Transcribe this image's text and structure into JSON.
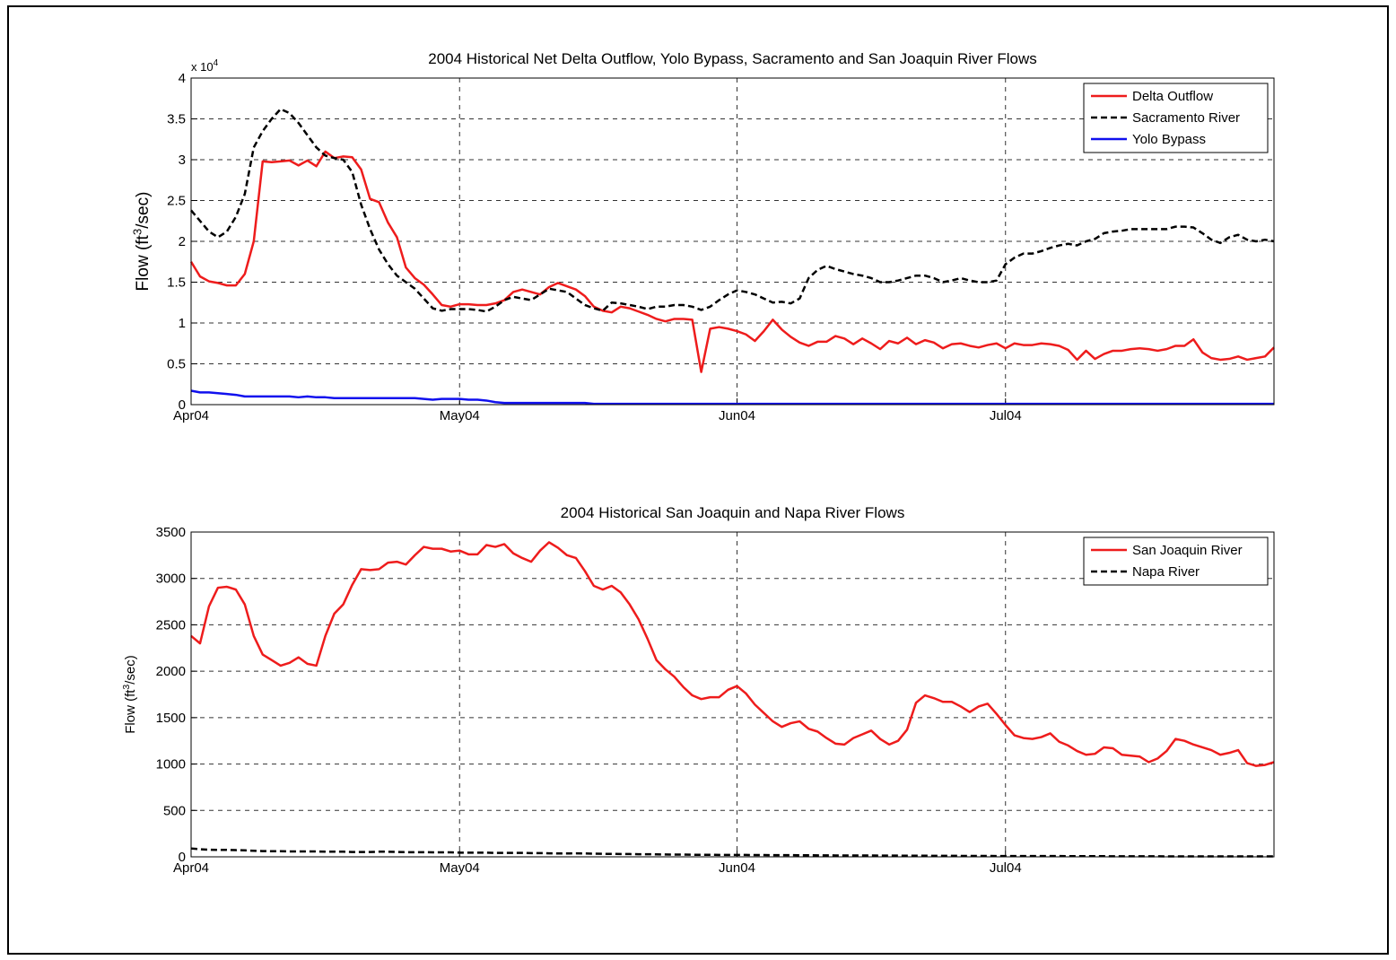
{
  "chart_data": [
    {
      "type": "line",
      "title": "2004 Historical Net Delta Outflow, Yolo Bypass, Sacramento and San Joaquin River Flows",
      "ylabel": {
        "text": "Flow (ft",
        "superscript": "3",
        "suffix": "/sec)"
      },
      "y_multiplier": {
        "base": "x 10",
        "exponent": "4"
      },
      "x": [
        0,
        1,
        2,
        3,
        4,
        5,
        6,
        7,
        8,
        9,
        10,
        11,
        12,
        13,
        14,
        15,
        16,
        17,
        18,
        19,
        20,
        21,
        22,
        23,
        24,
        25,
        26,
        27,
        28,
        29,
        30,
        31,
        32,
        33,
        34,
        35,
        36,
        37,
        38,
        39,
        40,
        41,
        42,
        43,
        44,
        45,
        46,
        47,
        48,
        49,
        50,
        51,
        52,
        53,
        54,
        55,
        56,
        57,
        58,
        59,
        60,
        61,
        62,
        63,
        64,
        65,
        66,
        67,
        68,
        69,
        70,
        71,
        72,
        73,
        74,
        75,
        76,
        77,
        78,
        79,
        80,
        81,
        82,
        83,
        84,
        85,
        86,
        87,
        88,
        89,
        90,
        91,
        92,
        93,
        94,
        95,
        96,
        97,
        98,
        99,
        100,
        101,
        102,
        103,
        104,
        105,
        106,
        107,
        108,
        109,
        110,
        111,
        112,
        113,
        114,
        115,
        116,
        117,
        118,
        119,
        120,
        121
      ],
      "xlim": [
        0,
        121
      ],
      "xticks": [
        {
          "value": 0,
          "label": "Apr04"
        },
        {
          "value": 30,
          "label": "May04"
        },
        {
          "value": 61,
          "label": "Jun04"
        },
        {
          "value": 91,
          "label": "Jul04"
        }
      ],
      "ylim": [
        0,
        4
      ],
      "yticks": [
        0,
        0.5,
        1,
        1.5,
        2,
        2.5,
        3,
        3.5,
        4
      ],
      "grid": true,
      "legend": "upper right",
      "series": [
        {
          "name": "Delta Outflow",
          "color": "#ee1c1c",
          "linestyle": "solid",
          "values": [
            1.75,
            1.57,
            1.51,
            1.49,
            1.46,
            1.46,
            1.6,
            2.0,
            2.98,
            2.97,
            2.98,
            2.99,
            2.93,
            2.99,
            2.92,
            3.1,
            3.02,
            3.04,
            3.03,
            2.88,
            2.52,
            2.48,
            2.23,
            2.05,
            1.68,
            1.55,
            1.47,
            1.35,
            1.22,
            1.2,
            1.23,
            1.23,
            1.22,
            1.22,
            1.24,
            1.28,
            1.38,
            1.41,
            1.38,
            1.35,
            1.44,
            1.49,
            1.45,
            1.41,
            1.33,
            1.2,
            1.15,
            1.13,
            1.2,
            1.18,
            1.14,
            1.1,
            1.05,
            1.02,
            1.05,
            1.05,
            1.04,
            0.4,
            0.93,
            0.95,
            0.93,
            0.9,
            0.86,
            0.78,
            0.9,
            1.04,
            0.92,
            0.83,
            0.76,
            0.72,
            0.77,
            0.77,
            0.84,
            0.81,
            0.74,
            0.81,
            0.75,
            0.68,
            0.78,
            0.75,
            0.82,
            0.74,
            0.79,
            0.76,
            0.69,
            0.74,
            0.75,
            0.72,
            0.7,
            0.73,
            0.75,
            0.69,
            0.75,
            0.73,
            0.73,
            0.75,
            0.74,
            0.72,
            0.67,
            0.55,
            0.66,
            0.56,
            0.62,
            0.66,
            0.66,
            0.68,
            0.69,
            0.68,
            0.66,
            0.68,
            0.72,
            0.72,
            0.8,
            0.64,
            0.57,
            0.55,
            0.56,
            0.59,
            0.55,
            0.57,
            0.59,
            0.7
          ]
        },
        {
          "name": "Sacramento River",
          "color": "#000000",
          "linestyle": "dashed",
          "values": [
            2.38,
            2.25,
            2.12,
            2.05,
            2.12,
            2.3,
            2.58,
            3.15,
            3.35,
            3.5,
            3.62,
            3.57,
            3.45,
            3.3,
            3.15,
            3.05,
            3.02,
            3.0,
            2.85,
            2.45,
            2.15,
            1.9,
            1.72,
            1.58,
            1.5,
            1.42,
            1.3,
            1.18,
            1.15,
            1.17,
            1.17,
            1.17,
            1.16,
            1.14,
            1.2,
            1.28,
            1.32,
            1.3,
            1.28,
            1.35,
            1.42,
            1.4,
            1.38,
            1.3,
            1.22,
            1.18,
            1.15,
            1.25,
            1.24,
            1.22,
            1.2,
            1.17,
            1.2,
            1.2,
            1.22,
            1.22,
            1.2,
            1.16,
            1.2,
            1.28,
            1.35,
            1.4,
            1.38,
            1.35,
            1.3,
            1.25,
            1.26,
            1.24,
            1.3,
            1.55,
            1.65,
            1.7,
            1.66,
            1.63,
            1.6,
            1.58,
            1.55,
            1.5,
            1.5,
            1.52,
            1.55,
            1.58,
            1.58,
            1.55,
            1.5,
            1.52,
            1.55,
            1.52,
            1.5,
            1.5,
            1.52,
            1.72,
            1.8,
            1.85,
            1.85,
            1.88,
            1.92,
            1.95,
            1.97,
            1.95,
            2.0,
            2.03,
            2.1,
            2.12,
            2.13,
            2.15,
            2.15,
            2.15,
            2.15,
            2.15,
            2.18,
            2.18,
            2.17,
            2.1,
            2.02,
            1.98,
            2.05,
            2.08,
            2.02,
            2.0,
            2.02,
            2.0
          ]
        },
        {
          "name": "Yolo Bypass",
          "color": "#1010ee",
          "linestyle": "solid",
          "values": [
            0.17,
            0.15,
            0.15,
            0.14,
            0.13,
            0.12,
            0.1,
            0.1,
            0.1,
            0.1,
            0.1,
            0.1,
            0.09,
            0.1,
            0.09,
            0.09,
            0.08,
            0.08,
            0.08,
            0.08,
            0.08,
            0.08,
            0.08,
            0.08,
            0.08,
            0.08,
            0.07,
            0.06,
            0.07,
            0.07,
            0.07,
            0.06,
            0.06,
            0.05,
            0.03,
            0.02,
            0.02,
            0.02,
            0.02,
            0.02,
            0.02,
            0.02,
            0.02,
            0.02,
            0.02,
            0.01,
            0.01,
            0.01,
            0.01,
            0.01,
            0.01,
            0.01,
            0.01,
            0.01,
            0.01,
            0.01,
            0.01,
            0.01,
            0.01,
            0.01,
            0.01,
            0.01,
            0.01,
            0.01,
            0.01,
            0.01,
            0.01,
            0.01,
            0.01,
            0.01,
            0.01,
            0.01,
            0.01,
            0.01,
            0.01,
            0.01,
            0.01,
            0.01,
            0.01,
            0.01,
            0.01,
            0.01,
            0.01,
            0.01,
            0.01,
            0.01,
            0.01,
            0.01,
            0.01,
            0.01,
            0.01,
            0.01,
            0.01,
            0.01,
            0.01,
            0.01,
            0.01,
            0.01,
            0.01,
            0.01,
            0.01,
            0.01,
            0.01,
            0.01,
            0.01,
            0.01,
            0.01,
            0.01,
            0.01,
            0.01,
            0.01,
            0.01,
            0.01,
            0.01,
            0.01,
            0.01,
            0.01,
            0.01,
            0.01,
            0.01,
            0.01,
            0.01
          ]
        }
      ]
    },
    {
      "type": "line",
      "title": "2004 Historical San Joaquin and Napa River Flows",
      "ylabel": {
        "text": "Flow (ft",
        "superscript": "3",
        "suffix": "/sec)"
      },
      "x": [
        0,
        1,
        2,
        3,
        4,
        5,
        6,
        7,
        8,
        9,
        10,
        11,
        12,
        13,
        14,
        15,
        16,
        17,
        18,
        19,
        20,
        21,
        22,
        23,
        24,
        25,
        26,
        27,
        28,
        29,
        30,
        31,
        32,
        33,
        34,
        35,
        36,
        37,
        38,
        39,
        40,
        41,
        42,
        43,
        44,
        45,
        46,
        47,
        48,
        49,
        50,
        51,
        52,
        53,
        54,
        55,
        56,
        57,
        58,
        59,
        60,
        61,
        62,
        63,
        64,
        65,
        66,
        67,
        68,
        69,
        70,
        71,
        72,
        73,
        74,
        75,
        76,
        77,
        78,
        79,
        80,
        81,
        82,
        83,
        84,
        85,
        86,
        87,
        88,
        89,
        90,
        91,
        92,
        93,
        94,
        95,
        96,
        97,
        98,
        99,
        100,
        101,
        102,
        103,
        104,
        105,
        106,
        107,
        108,
        109,
        110,
        111,
        112,
        113,
        114,
        115,
        116,
        117,
        118,
        119,
        120,
        121
      ],
      "xlim": [
        0,
        121
      ],
      "xticks": [
        {
          "value": 0,
          "label": "Apr04"
        },
        {
          "value": 30,
          "label": "May04"
        },
        {
          "value": 61,
          "label": "Jun04"
        },
        {
          "value": 91,
          "label": "Jul04"
        }
      ],
      "ylim": [
        0,
        3500
      ],
      "yticks": [
        0,
        500,
        1000,
        1500,
        2000,
        2500,
        3000,
        3500
      ],
      "grid": true,
      "legend": "upper right",
      "series": [
        {
          "name": "San Joaquin River",
          "color": "#ee1c1c",
          "linestyle": "solid",
          "values": [
            2380,
            2300,
            2700,
            2900,
            2910,
            2880,
            2720,
            2380,
            2180,
            2120,
            2060,
            2090,
            2150,
            2080,
            2060,
            2380,
            2620,
            2720,
            2930,
            3100,
            3090,
            3100,
            3170,
            3180,
            3150,
            3250,
            3340,
            3320,
            3320,
            3290,
            3300,
            3260,
            3260,
            3360,
            3340,
            3370,
            3270,
            3220,
            3180,
            3300,
            3390,
            3330,
            3250,
            3220,
            3080,
            2920,
            2880,
            2920,
            2850,
            2720,
            2560,
            2350,
            2120,
            2020,
            1940,
            1830,
            1740,
            1700,
            1720,
            1720,
            1800,
            1840,
            1760,
            1640,
            1550,
            1460,
            1400,
            1440,
            1460,
            1380,
            1350,
            1280,
            1220,
            1210,
            1280,
            1320,
            1360,
            1270,
            1210,
            1250,
            1370,
            1660,
            1740,
            1710,
            1670,
            1670,
            1620,
            1560,
            1620,
            1650,
            1540,
            1420,
            1310,
            1280,
            1270,
            1290,
            1330,
            1240,
            1200,
            1140,
            1100,
            1110,
            1180,
            1170,
            1100,
            1090,
            1080,
            1020,
            1060,
            1140,
            1270,
            1250,
            1210,
            1180,
            1150,
            1100,
            1120,
            1150,
            1010,
            980,
            990,
            1020
          ]
        },
        {
          "name": "Napa River",
          "color": "#000000",
          "linestyle": "dashed",
          "values": [
            90,
            82,
            76,
            75,
            75,
            72,
            70,
            65,
            62,
            60,
            60,
            58,
            58,
            58,
            58,
            56,
            56,
            55,
            52,
            52,
            52,
            55,
            55,
            52,
            50,
            50,
            50,
            48,
            48,
            48,
            45,
            45,
            45,
            45,
            42,
            42,
            42,
            42,
            40,
            40,
            38,
            36,
            36,
            38,
            36,
            34,
            32,
            32,
            30,
            30,
            28,
            28,
            26,
            25,
            24,
            24,
            22,
            22,
            22,
            20,
            20,
            20,
            20,
            19,
            19,
            18,
            18,
            18,
            17,
            17,
            16,
            16,
            15,
            15,
            14,
            14,
            14,
            13,
            13,
            13,
            12,
            12,
            12,
            11,
            11,
            11,
            10,
            10,
            10,
            10,
            9,
            9,
            9,
            9,
            8,
            8,
            8,
            8,
            7,
            7,
            7,
            7,
            7,
            6,
            6,
            6,
            6,
            6,
            6,
            5,
            5,
            5,
            5,
            5,
            5,
            5,
            5,
            5,
            5,
            5,
            5,
            5
          ]
        }
      ]
    }
  ]
}
